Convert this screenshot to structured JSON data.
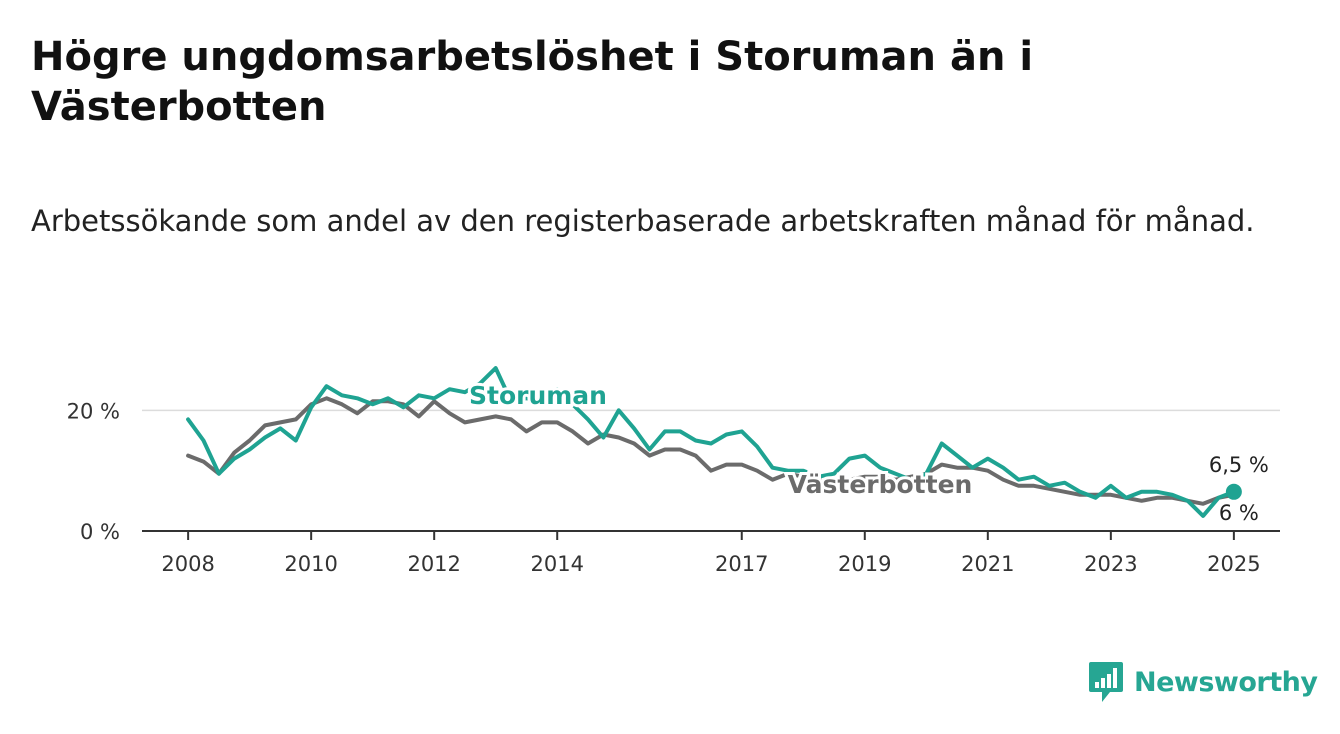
{
  "title": "Högre ungdomsarbetslöshet i Storuman än i Västerbotten",
  "subtitle": "Arbetssökande som andel av den registerbaserade arbetskraften månad för månad.",
  "brand": {
    "name": "Newsworthy",
    "icon": "newsworthy-logo-icon",
    "color": "#26a693"
  },
  "chart_data": {
    "type": "line",
    "title": "Högre ungdomsarbetslöshet i Storuman än i Västerbotten",
    "xlabel": "",
    "ylabel": "",
    "x_ticks": [
      "2008",
      "2010",
      "2012",
      "2014",
      "2017",
      "2019",
      "2021",
      "2023",
      "2025"
    ],
    "y_ticks": [
      "0 %",
      "20 %"
    ],
    "ylim": [
      0,
      30
    ],
    "xlim": [
      "2007-04",
      "2025-10"
    ],
    "grid": "horizontal at 20 %",
    "legend": "inline labels",
    "series": [
      {
        "name": "Västerbotten",
        "color": "#6b6b6b",
        "end_label": "6 %",
        "points": [
          [
            "2008-01",
            12.5
          ],
          [
            "2008-04",
            11.5
          ],
          [
            "2008-07",
            9.5
          ],
          [
            "2008-10",
            13.0
          ],
          [
            "2009-01",
            15.0
          ],
          [
            "2009-04",
            17.5
          ],
          [
            "2009-07",
            18.0
          ],
          [
            "2009-10",
            18.5
          ],
          [
            "2010-01",
            21.0
          ],
          [
            "2010-04",
            22.0
          ],
          [
            "2010-07",
            21.0
          ],
          [
            "2010-10",
            19.5
          ],
          [
            "2011-01",
            21.5
          ],
          [
            "2011-04",
            21.5
          ],
          [
            "2011-07",
            21.0
          ],
          [
            "2011-10",
            19.0
          ],
          [
            "2012-01",
            21.5
          ],
          [
            "2012-04",
            19.5
          ],
          [
            "2012-07",
            18.0
          ],
          [
            "2012-10",
            18.5
          ],
          [
            "2013-01",
            19.0
          ],
          [
            "2013-04",
            18.5
          ],
          [
            "2013-07",
            16.5
          ],
          [
            "2013-10",
            18.0
          ],
          [
            "2014-01",
            18.0
          ],
          [
            "2014-04",
            16.5
          ],
          [
            "2014-07",
            14.5
          ],
          [
            "2014-10",
            16.0
          ],
          [
            "2015-01",
            15.5
          ],
          [
            "2015-04",
            14.5
          ],
          [
            "2015-07",
            12.5
          ],
          [
            "2015-10",
            13.5
          ],
          [
            "2016-01",
            13.5
          ],
          [
            "2016-04",
            12.5
          ],
          [
            "2016-07",
            10.0
          ],
          [
            "2016-10",
            11.0
          ],
          [
            "2017-01",
            11.0
          ],
          [
            "2017-04",
            10.0
          ],
          [
            "2017-07",
            8.5
          ],
          [
            "2017-10",
            9.5
          ],
          [
            "2018-01",
            9.0
          ],
          [
            "2018-04",
            8.5
          ],
          [
            "2018-07",
            7.5
          ],
          [
            "2018-10",
            8.5
          ],
          [
            "2019-01",
            9.0
          ],
          [
            "2019-04",
            9.0
          ],
          [
            "2019-07",
            8.5
          ],
          [
            "2019-10",
            9.0
          ],
          [
            "2020-01",
            9.5
          ],
          [
            "2020-04",
            11.0
          ],
          [
            "2020-07",
            10.5
          ],
          [
            "2020-10",
            10.5
          ],
          [
            "2021-01",
            10.0
          ],
          [
            "2021-04",
            8.5
          ],
          [
            "2021-07",
            7.5
          ],
          [
            "2021-10",
            7.5
          ],
          [
            "2022-01",
            7.0
          ],
          [
            "2022-04",
            6.5
          ],
          [
            "2022-07",
            6.0
          ],
          [
            "2022-10",
            6.0
          ],
          [
            "2023-01",
            6.0
          ],
          [
            "2023-04",
            5.5
          ],
          [
            "2023-07",
            5.0
          ],
          [
            "2023-10",
            5.5
          ],
          [
            "2024-01",
            5.5
          ],
          [
            "2024-04",
            5.0
          ],
          [
            "2024-07",
            4.5
          ],
          [
            "2024-10",
            5.5
          ],
          [
            "2025-01",
            6.0
          ]
        ]
      },
      {
        "name": "Storuman",
        "color": "#1fa392",
        "end_label": "6,5 %",
        "points": [
          [
            "2008-01",
            18.5
          ],
          [
            "2008-04",
            15.0
          ],
          [
            "2008-07",
            9.5
          ],
          [
            "2008-10",
            12.0
          ],
          [
            "2009-01",
            13.5
          ],
          [
            "2009-04",
            15.5
          ],
          [
            "2009-07",
            17.0
          ],
          [
            "2009-10",
            15.0
          ],
          [
            "2010-01",
            20.5
          ],
          [
            "2010-04",
            24.0
          ],
          [
            "2010-07",
            22.5
          ],
          [
            "2010-10",
            22.0
          ],
          [
            "2011-01",
            21.0
          ],
          [
            "2011-04",
            22.0
          ],
          [
            "2011-07",
            20.5
          ],
          [
            "2011-10",
            22.5
          ],
          [
            "2012-01",
            22.0
          ],
          [
            "2012-04",
            23.5
          ],
          [
            "2012-07",
            23.0
          ],
          [
            "2012-10",
            24.5
          ],
          [
            "2013-01",
            27.0
          ],
          [
            "2013-04",
            21.5
          ],
          [
            "2013-07",
            22.0
          ],
          [
            "2013-10",
            21.5
          ],
          [
            "2014-01",
            23.5
          ],
          [
            "2014-04",
            21.0
          ],
          [
            "2014-07",
            18.5
          ],
          [
            "2014-10",
            15.5
          ],
          [
            "2015-01",
            20.0
          ],
          [
            "2015-04",
            17.0
          ],
          [
            "2015-07",
            13.5
          ],
          [
            "2015-10",
            16.5
          ],
          [
            "2016-01",
            16.5
          ],
          [
            "2016-04",
            15.0
          ],
          [
            "2016-07",
            14.5
          ],
          [
            "2016-10",
            16.0
          ],
          [
            "2017-01",
            16.5
          ],
          [
            "2017-04",
            14.0
          ],
          [
            "2017-07",
            10.5
          ],
          [
            "2017-10",
            10.0
          ],
          [
            "2018-01",
            10.0
          ],
          [
            "2018-04",
            9.0
          ],
          [
            "2018-07",
            9.5
          ],
          [
            "2018-10",
            12.0
          ],
          [
            "2019-01",
            12.5
          ],
          [
            "2019-04",
            10.5
          ],
          [
            "2019-07",
            9.5
          ],
          [
            "2019-10",
            8.5
          ],
          [
            "2020-01",
            9.5
          ],
          [
            "2020-04",
            14.5
          ],
          [
            "2020-07",
            12.5
          ],
          [
            "2020-10",
            10.5
          ],
          [
            "2021-01",
            12.0
          ],
          [
            "2021-04",
            10.5
          ],
          [
            "2021-07",
            8.5
          ],
          [
            "2021-10",
            9.0
          ],
          [
            "2022-01",
            7.5
          ],
          [
            "2022-04",
            8.0
          ],
          [
            "2022-07",
            6.5
          ],
          [
            "2022-10",
            5.5
          ],
          [
            "2023-01",
            7.5
          ],
          [
            "2023-04",
            5.5
          ],
          [
            "2023-07",
            6.5
          ],
          [
            "2023-10",
            6.5
          ],
          [
            "2024-01",
            6.0
          ],
          [
            "2024-04",
            5.0
          ],
          [
            "2024-07",
            2.5
          ],
          [
            "2024-10",
            5.5
          ],
          [
            "2025-01",
            6.5
          ]
        ]
      }
    ]
  }
}
